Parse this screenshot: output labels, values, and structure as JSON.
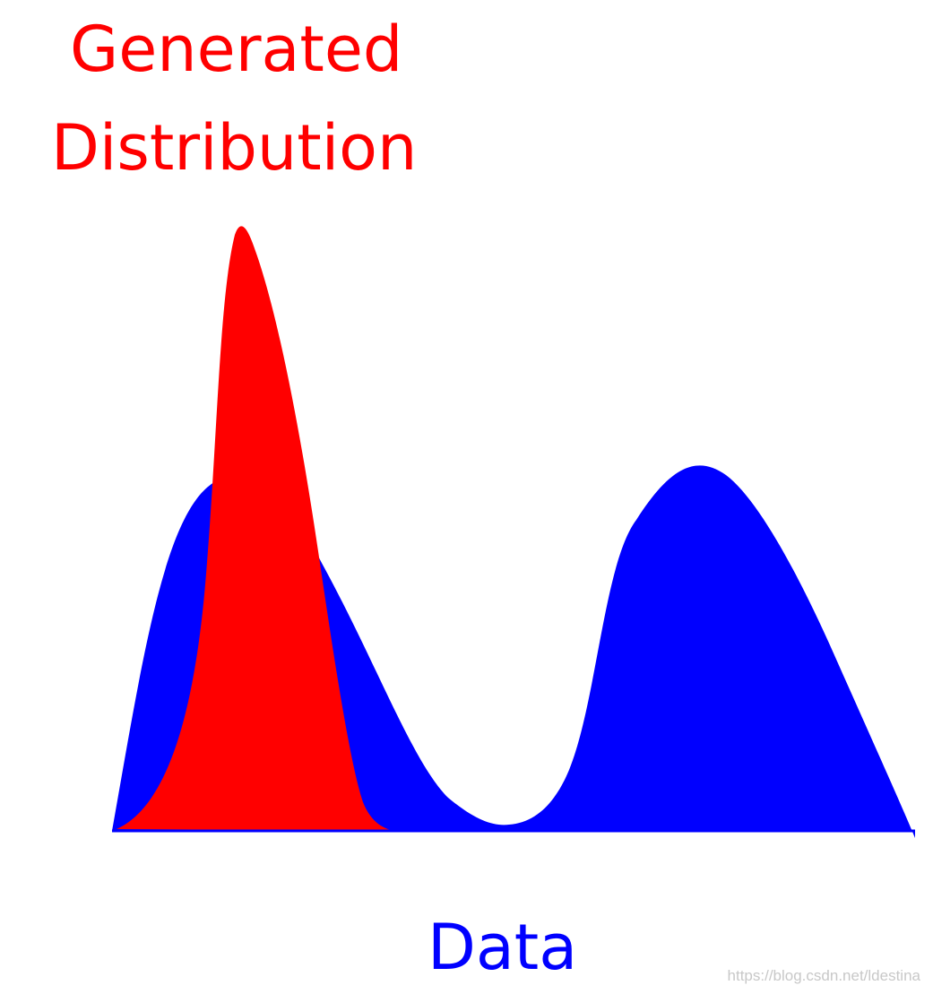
{
  "title": {
    "line1": "Generated",
    "line2": "Distribution",
    "color": "#ff0000"
  },
  "xlabel": {
    "text": "Data",
    "color": "#0000ff"
  },
  "watermark": "https://blog.csdn.net/ldestina",
  "colors": {
    "data_fill": "#0000ff",
    "generated_fill": "#ff0000",
    "background": "#ffffff"
  },
  "chart_data": {
    "type": "area",
    "series": [
      {
        "name": "Data",
        "color": "#0000ff",
        "shape": "bimodal"
      },
      {
        "name": "Generated Distribution",
        "color": "#ff0000",
        "shape": "unimodal-narrow"
      }
    ],
    "grid": false
  }
}
